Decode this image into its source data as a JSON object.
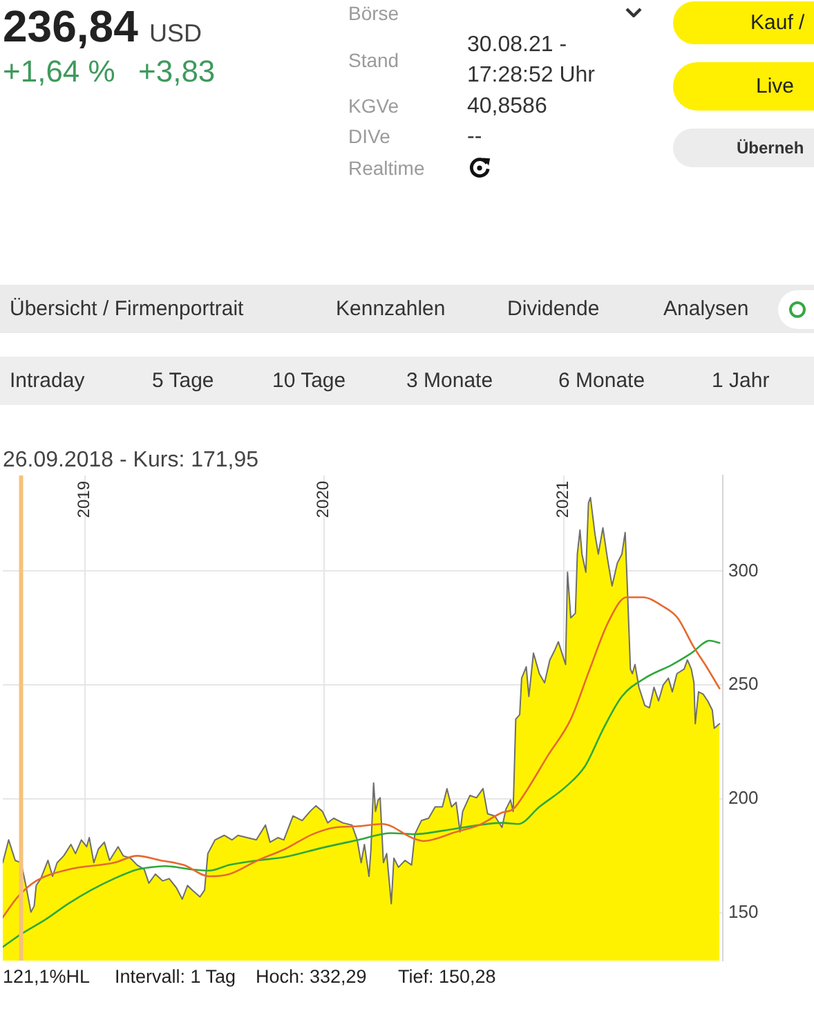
{
  "chart_data": {
    "type": "line",
    "annotations": [
      "236,84",
      "USD",
      "+1,64 %",
      "+3,83",
      "Börse",
      "Stand",
      "KGVe",
      "DIVe",
      "Realtime",
      "30.08.21 - 17:28:52 Uhr",
      "40,8586",
      "--",
      "Kauf /",
      "Live",
      "Überneh",
      "Übersicht / Firmenportrait",
      "Kennzahlen",
      "Dividende",
      "Analysen",
      "Intraday",
      "5 Tage",
      "10 Tage",
      "3 Monate",
      "6 Monate",
      "1 Jahr",
      "121,1%HL",
      "Intervall: 1 Tag",
      "Hoch: 332,29",
      "Tief: 150,28"
    ],
    "series": [
      {
        "type": "area",
        "color": "#fff200",
        "x": [
          "2018-08-29",
          "2018-09-07",
          "2018-09-17",
          "2018-09-26",
          "2018-10-04",
          "2018-10-11",
          "2018-10-16",
          "2018-10-19",
          "2018-10-26",
          "2018-11-06",
          "2018-11-13",
          "2018-11-20",
          "2018-11-30",
          "2018-12-11",
          "2018-12-18",
          "2018-12-27",
          "2019-01-04",
          "2019-01-08",
          "2019-01-15",
          "2019-01-22",
          "2019-01-31",
          "2019-02-08",
          "2019-02-21",
          "2019-03-01",
          "2019-03-12",
          "2019-03-22",
          "2019-04-02",
          "2019-04-09",
          "2019-04-19",
          "2019-04-30",
          "2019-05-10",
          "2019-05-21",
          "2019-05-30",
          "2019-06-07",
          "2019-06-14",
          "2019-06-26",
          "2019-07-03",
          "2019-07-08",
          "2019-07-19",
          "2019-08-02",
          "2019-08-14",
          "2019-08-23",
          "2019-09-06",
          "2019-09-20",
          "2019-10-04",
          "2019-10-11",
          "2019-10-23",
          "2019-11-01",
          "2019-11-15",
          "2019-11-29",
          "2019-12-11",
          "2019-12-20",
          "2019-12-30",
          "2020-01-07",
          "2020-01-16",
          "2020-01-30",
          "2020-02-13",
          "2020-02-21",
          "2020-02-27",
          "2020-03-03",
          "2020-03-10",
          "2020-03-13",
          "2020-03-17",
          "2020-03-20",
          "2020-03-24",
          "2020-03-27",
          "2020-04-01",
          "2020-04-06",
          "2020-04-13",
          "2020-04-17",
          "2020-04-24",
          "2020-05-04",
          "2020-05-14",
          "2020-05-19",
          "2020-05-29",
          "2020-06-09",
          "2020-06-19",
          "2020-06-30",
          "2020-07-07",
          "2020-07-14",
          "2020-07-21",
          "2020-07-27",
          "2020-07-31",
          "2020-08-11",
          "2020-08-21",
          "2020-08-31",
          "2020-09-07",
          "2020-09-18",
          "2020-09-29",
          "2020-10-05",
          "2020-10-12",
          "2020-10-16",
          "2020-10-20",
          "2020-10-26",
          "2020-10-29",
          "2020-11-05",
          "2020-11-09",
          "2020-11-16",
          "2020-11-25",
          "2020-12-03",
          "2020-12-11",
          "2020-12-18",
          "2020-12-24",
          "2021-01-04",
          "2021-01-07",
          "2021-01-12",
          "2021-01-19",
          "2021-01-22",
          "2021-01-26",
          "2021-01-29",
          "2021-02-04",
          "2021-02-08",
          "2021-02-11",
          "2021-02-18",
          "2021-02-23",
          "2021-03-02",
          "2021-03-09",
          "2021-03-16",
          "2021-03-24",
          "2021-03-31",
          "2021-04-05",
          "2021-04-08",
          "2021-04-13",
          "2021-04-16",
          "2021-04-20",
          "2021-04-26",
          "2021-05-05",
          "2021-05-12",
          "2021-05-19",
          "2021-05-26",
          "2021-06-02",
          "2021-06-10",
          "2021-06-16",
          "2021-06-23",
          "2021-07-04",
          "2021-07-09",
          "2021-07-15",
          "2021-07-19",
          "2021-07-21",
          "2021-07-26",
          "2021-08-02",
          "2021-08-09",
          "2021-08-16",
          "2021-08-19",
          "2021-08-27"
        ],
        "values": [
          172,
          182,
          173,
          171.95,
          161,
          150.28,
          153,
          162,
          165,
          173,
          166,
          172,
          175,
          180,
          176,
          182,
          179,
          183,
          172,
          178,
          181,
          173,
          179,
          175,
          174,
          171,
          169,
          163,
          167,
          164,
          165,
          161,
          156,
          162,
          160,
          157,
          160,
          176,
          182,
          184,
          182,
          184,
          183,
          182,
          188.5,
          181,
          183,
          182,
          192.5,
          190.5,
          194.5,
          197,
          194.5,
          189.5,
          191.5,
          189.5,
          188.5,
          182,
          172,
          180,
          166,
          178,
          207,
          194.5,
          199.5,
          200.5,
          172,
          176,
          154,
          174,
          170,
          173,
          171,
          184.5,
          190.5,
          191.5,
          196.5,
          196.5,
          204.5,
          196.5,
          198.5,
          185.5,
          194.5,
          201.5,
          200.5,
          204.5,
          193.5,
          192.5,
          187.5,
          195.5,
          199.5,
          194.5,
          235,
          237,
          253,
          258,
          245,
          264,
          255,
          251,
          261,
          265,
          269,
          259,
          299.5,
          279.5,
          281.5,
          307.5,
          318,
          307.5,
          299.5,
          330,
          332.29,
          316,
          307.5,
          319,
          305.5,
          293.5,
          303.5,
          307.5,
          317,
          295.5,
          257,
          255,
          259,
          249,
          241,
          240,
          249,
          243,
          250,
          253,
          247,
          255,
          257,
          261,
          257,
          251,
          233,
          247,
          246,
          243,
          239,
          231,
          233
        ]
      },
      {
        "type": "line",
        "color": "#e6692f",
        "x": [
          "2018-08-29",
          "2018-09-21",
          "2018-10-19",
          "2018-12-07",
          "2019-02-15",
          "2019-03-22",
          "2019-04-27",
          "2019-06-01",
          "2019-07-10",
          "2019-08-10",
          "2019-09-22",
          "2019-11-03",
          "2019-12-15",
          "2020-01-19",
          "2020-02-23",
          "2020-03-30",
          "2020-05-18",
          "2020-06-01",
          "2020-07-21",
          "2020-08-25",
          "2020-09-29",
          "2020-10-16",
          "2020-11-03",
          "2020-12-08",
          "2021-01-12",
          "2021-02-10",
          "2021-03-10",
          "2021-04-07",
          "2021-05-02",
          "2021-06-02",
          "2021-06-24",
          "2021-07-18",
          "2021-08-05",
          "2021-08-27"
        ],
        "values": [
          148,
          157,
          164,
          169,
          172,
          175,
          173,
          171,
          166,
          167,
          173,
          178,
          184.5,
          187.5,
          188,
          189,
          182.5,
          181.5,
          185.5,
          188.5,
          194,
          195.5,
          202.5,
          219,
          235,
          257,
          277.5,
          288.5,
          288.5,
          284.5,
          279.5,
          267,
          259,
          248.5
        ]
      },
      {
        "type": "line",
        "color": "#2fa83a",
        "x": [
          "2018-08-29",
          "2018-09-28",
          "2018-11-02",
          "2018-12-07",
          "2019-01-11",
          "2019-02-15",
          "2019-03-22",
          "2019-04-12",
          "2019-05-04",
          "2019-06-15",
          "2019-07-10",
          "2019-08-10",
          "2019-09-22",
          "2019-11-03",
          "2019-12-29",
          "2020-02-23",
          "2020-04-13",
          "2020-05-18",
          "2020-06-30",
          "2020-08-25",
          "2020-09-29",
          "2020-10-24",
          "2020-11-25",
          "2021-01-05",
          "2021-02-03",
          "2021-03-03",
          "2021-03-31",
          "2021-05-05",
          "2021-06-16",
          "2021-07-15",
          "2021-08-12",
          "2021-08-27"
        ],
        "values": [
          135,
          141,
          147,
          154,
          160,
          165,
          169,
          170,
          170.5,
          169,
          168.5,
          171,
          173,
          174.5,
          178.5,
          182,
          185,
          184.5,
          186,
          188.5,
          189.5,
          189,
          196.5,
          205.5,
          214.5,
          231,
          245,
          253,
          259,
          264,
          269.5,
          268.5
        ]
      }
    ],
    "xlim": [
      "2018-08-29",
      "2021-09-01"
    ],
    "xticks": [
      {
        "value": "2019-01-01",
        "label": "2019"
      },
      {
        "value": "2020-01-01",
        "label": "2020"
      },
      {
        "value": "2021-01-01",
        "label": "2021"
      }
    ],
    "ylim": [
      129,
      342
    ],
    "yticks": [
      150,
      200,
      250,
      300
    ],
    "grid": true,
    "ref_lines": [
      {
        "axis": "x",
        "value": "2018-09-26",
        "label": "26.09.2018 - Kurs: 171,95",
        "color": "#f6c27b"
      }
    ]
  }
}
